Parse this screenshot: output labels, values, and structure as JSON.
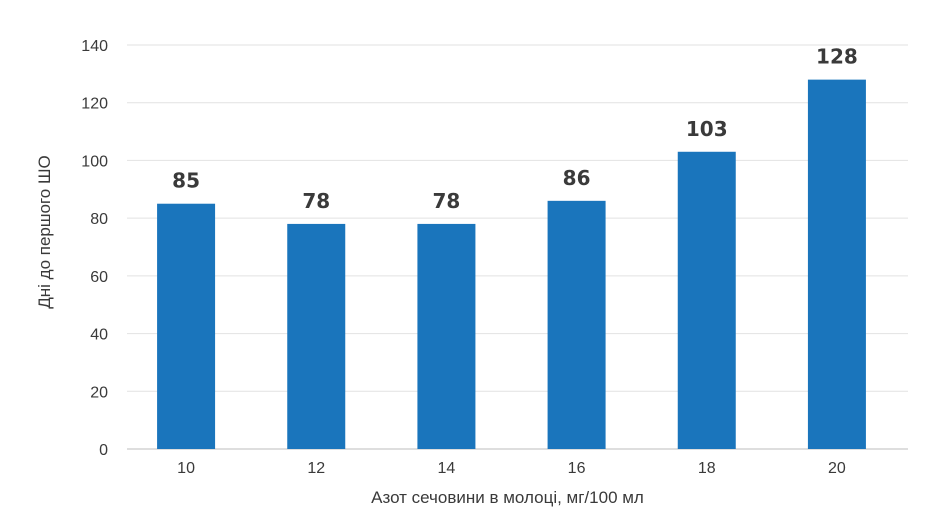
{
  "chart_data": {
    "type": "bar",
    "title": "",
    "xlabel": "Азот сечовини в молоці, мг/100 мл",
    "ylabel": "Дні до першого ШО",
    "categories": [
      "10",
      "12",
      "14",
      "16",
      "18",
      "20"
    ],
    "values": [
      85,
      78,
      78,
      86,
      103,
      128
    ],
    "data_labels": [
      "85",
      "78",
      "78",
      "86",
      "103",
      "128"
    ],
    "yticks": [
      0,
      20,
      40,
      60,
      80,
      100,
      120,
      140
    ],
    "ylim": [
      0,
      140
    ],
    "grid": true,
    "legend": "none",
    "bar_color": "#1a75bc"
  }
}
